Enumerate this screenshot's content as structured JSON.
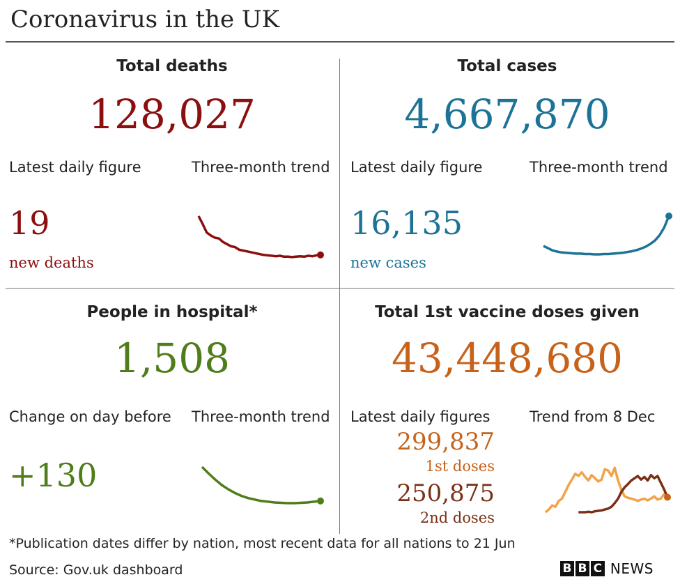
{
  "title": "Coronavirus in the UK",
  "colors": {
    "deaths": "#8b0f0f",
    "cases": "#1d7396",
    "hospital": "#4e7d1a",
    "vaccine": "#c7621a",
    "dose1_line": "#f2a34a",
    "dose2": "#7a3016"
  },
  "panels": {
    "deaths": {
      "heading": "Total deaths",
      "total": "128,027",
      "latest_label": "Latest daily figure",
      "trend_label": "Three-month trend",
      "latest_value": "19",
      "latest_unit": "new deaths"
    },
    "cases": {
      "heading": "Total cases",
      "total": "4,667,870",
      "latest_label": "Latest daily figure",
      "trend_label": "Three-month trend",
      "latest_value": "16,135",
      "latest_unit": "new cases"
    },
    "hospital": {
      "heading": "People in hospital*",
      "total": "1,508",
      "latest_label": "Change on day before",
      "trend_label": "Three-month trend",
      "latest_value": "+130"
    },
    "vaccine": {
      "heading": "Total 1st vaccine doses given",
      "total": "43,448,680",
      "latest_label": "Latest daily figures",
      "trend_label": "Trend from 8 Dec",
      "dose1_value": "299,837",
      "dose1_label": "1st doses",
      "dose2_value": "250,875",
      "dose2_label": "2nd doses"
    }
  },
  "footnote": "*Publication dates differ by nation, most recent data for all nations to 21 Jun",
  "source": "Source: Gov.uk dashboard",
  "logo": {
    "letters": [
      "B",
      "B",
      "C"
    ],
    "word": "NEWS"
  },
  "chart_data": [
    {
      "type": "line",
      "series": [
        {
          "values": [
            1.0,
            0.82,
            0.62,
            0.55,
            0.5,
            0.48,
            0.4,
            0.35,
            0.3,
            0.28,
            0.22,
            0.2,
            0.18,
            0.16,
            0.14,
            0.12,
            0.1,
            0.09,
            0.08,
            0.07,
            0.08,
            0.06,
            0.06,
            0.05,
            0.06,
            0.07,
            0.06,
            0.08,
            0.07,
            0.09,
            0.1
          ]
        }
      ]
    },
    {
      "type": "line",
      "series": [
        {
          "values": [
            0.22,
            0.16,
            0.1,
            0.07,
            0.05,
            0.04,
            0.03,
            0.02,
            0.02,
            0.01,
            0.01,
            0.0,
            0.0,
            0.01,
            0.01,
            0.02,
            0.03,
            0.04,
            0.06,
            0.08,
            0.11,
            0.15,
            0.2,
            0.27,
            0.36,
            0.5,
            0.7,
            1.0
          ]
        }
      ]
    },
    {
      "type": "line",
      "series": [
        {
          "values": [
            1.0,
            0.82,
            0.65,
            0.5,
            0.38,
            0.28,
            0.2,
            0.14,
            0.1,
            0.06,
            0.04,
            0.02,
            0.01,
            0.0,
            0.0,
            0.01,
            0.02,
            0.04,
            0.06
          ]
        }
      ]
    },
    {
      "type": "line",
      "series": [
        {
          "name": "1st doses",
          "values": [
            0.0,
            0.06,
            0.15,
            0.12,
            0.25,
            0.3,
            0.45,
            0.6,
            0.72,
            0.85,
            0.8,
            0.88,
            0.78,
            0.7,
            0.82,
            0.75,
            0.68,
            0.72,
            0.95,
            0.92,
            0.8,
            0.98,
            0.7,
            0.5,
            0.35,
            0.32,
            0.3,
            0.28,
            0.25,
            0.28,
            0.3,
            0.26,
            0.3,
            0.35,
            0.28,
            0.3,
            0.4,
            0.33
          ]
        },
        {
          "name": "2nd doses",
          "values": [
            null,
            null,
            null,
            null,
            null,
            null,
            null,
            null,
            null,
            null,
            0.0,
            0.0,
            0.0,
            0.01,
            0.0,
            0.02,
            0.03,
            0.04,
            0.06,
            0.08,
            0.12,
            0.2,
            0.3,
            0.45,
            0.55,
            0.62,
            0.7,
            0.75,
            0.8,
            0.72,
            0.78,
            0.7,
            0.82,
            0.75,
            0.8,
            0.65,
            0.5,
            0.33
          ]
        }
      ]
    }
  ]
}
